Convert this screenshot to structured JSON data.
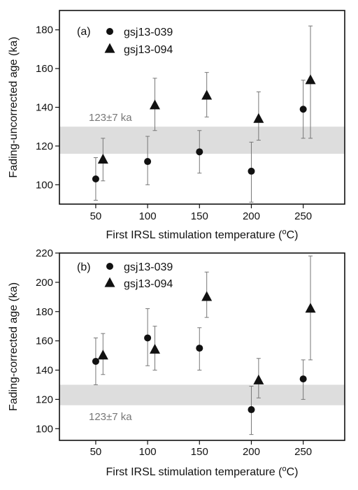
{
  "colors": {
    "marker": "#111111",
    "errorbar": "#777777",
    "band": "#dddddd",
    "band_text": "#777777",
    "axis": "#111111"
  },
  "chart_data": [
    {
      "type": "scatter",
      "panel_label": "(a)",
      "xlabel": "First IRSL stimulation temperature (",
      "xlabel_sup": "o",
      "xlabel_end": "C)",
      "ylabel": "Fading-uncorrected age (ka)",
      "xlim": [
        15,
        290
      ],
      "ylim": [
        90,
        190
      ],
      "xticks": [
        50,
        100,
        150,
        200,
        250
      ],
      "yticks": [
        100,
        120,
        140,
        160,
        180
      ],
      "band": {
        "low": 116,
        "high": 130,
        "label": "123±7 ka"
      },
      "legend_position": "top-left",
      "series": [
        {
          "name": "gsj13-039",
          "marker": "circle",
          "x": [
            50,
            100,
            150,
            200,
            250
          ],
          "y": [
            103,
            112,
            117,
            107,
            139
          ],
          "err_low": [
            92,
            100,
            106,
            91,
            124
          ],
          "err_high": [
            114,
            125,
            128,
            122,
            154
          ]
        },
        {
          "name": "gsj13-094",
          "marker": "triangle",
          "x": [
            57,
            107,
            157,
            207,
            257
          ],
          "y": [
            113,
            141,
            146,
            134,
            154
          ],
          "err_low": [
            102,
            128,
            135,
            123,
            124
          ],
          "err_high": [
            124,
            155,
            158,
            148,
            182
          ]
        }
      ]
    },
    {
      "type": "scatter",
      "panel_label": "(b)",
      "xlabel": "First IRSL stimulation temperature (",
      "xlabel_sup": "o",
      "xlabel_end": "C)",
      "ylabel": "Fading-corrected age (ka)",
      "xlim": [
        15,
        290
      ],
      "ylim": [
        92,
        220
      ],
      "xticks": [
        50,
        100,
        150,
        200,
        250
      ],
      "yticks": [
        100,
        120,
        140,
        160,
        180,
        200,
        220
      ],
      "band": {
        "low": 116,
        "high": 130,
        "label": "123±7 ka"
      },
      "legend_position": "top-left",
      "series": [
        {
          "name": "gsj13-039",
          "marker": "circle",
          "x": [
            50,
            100,
            150,
            200,
            250
          ],
          "y": [
            146,
            162,
            155,
            113,
            134
          ],
          "err_low": [
            130,
            143,
            140,
            96,
            120
          ],
          "err_high": [
            162,
            182,
            169,
            129,
            147
          ]
        },
        {
          "name": "gsj13-094",
          "marker": "triangle",
          "x": [
            57,
            107,
            157,
            207,
            257
          ],
          "y": [
            150,
            154,
            190,
            133,
            182
          ],
          "err_low": [
            137,
            140,
            176,
            121,
            147
          ],
          "err_high": [
            165,
            170,
            207,
            148,
            218
          ]
        }
      ]
    }
  ]
}
